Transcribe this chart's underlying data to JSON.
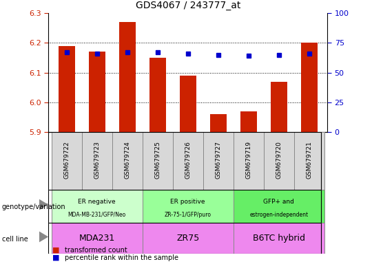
{
  "title": "GDS4067 / 243777_at",
  "samples": [
    "GSM679722",
    "GSM679723",
    "GSM679724",
    "GSM679725",
    "GSM679726",
    "GSM679727",
    "GSM679719",
    "GSM679720",
    "GSM679721"
  ],
  "red_values": [
    6.19,
    6.17,
    6.27,
    6.15,
    6.09,
    5.96,
    5.97,
    6.07,
    6.2
  ],
  "blue_values": [
    67,
    66,
    67,
    67,
    66,
    65,
    64,
    65,
    66
  ],
  "ylim": [
    5.9,
    6.3
  ],
  "y2lim": [
    0,
    100
  ],
  "yticks": [
    5.9,
    6.0,
    6.1,
    6.2,
    6.3
  ],
  "y2ticks": [
    0,
    25,
    50,
    75,
    100
  ],
  "genotype_groups": [
    {
      "label": "ER negative\nMDA-MB-231/GFP/Neo",
      "start": 0,
      "end": 3,
      "color": "#ccffcc"
    },
    {
      "label": "ER positive\nZR-75-1/GFP/puro",
      "start": 3,
      "end": 6,
      "color": "#99ff99"
    },
    {
      "label": "GFP+ and\nestrogen-independent",
      "start": 6,
      "end": 9,
      "color": "#66ee66"
    }
  ],
  "cellline_groups": [
    {
      "label": "MDA231",
      "start": 0,
      "end": 3,
      "color": "#ee88ee"
    },
    {
      "label": "ZR75",
      "start": 3,
      "end": 6,
      "color": "#ee88ee"
    },
    {
      "label": "B6TC hybrid",
      "start": 6,
      "end": 9,
      "color": "#ee88ee"
    }
  ],
  "bar_color": "#cc2200",
  "dot_color": "#0000cc",
  "bg_color": "#ffffff",
  "tick_label_color_left": "#cc2200",
  "tick_label_color_right": "#0000cc",
  "legend_items": [
    {
      "color": "#cc2200",
      "label": "transformed count"
    },
    {
      "color": "#0000cc",
      "label": "percentile rank within the sample"
    }
  ],
  "bar_bottom": 5.9,
  "bar_width": 0.55,
  "label_area_color": "#d0d0d0",
  "geno_label_fontsize": 6.5,
  "cell_label_fontsize": 9,
  "sample_fontsize": 6.5
}
